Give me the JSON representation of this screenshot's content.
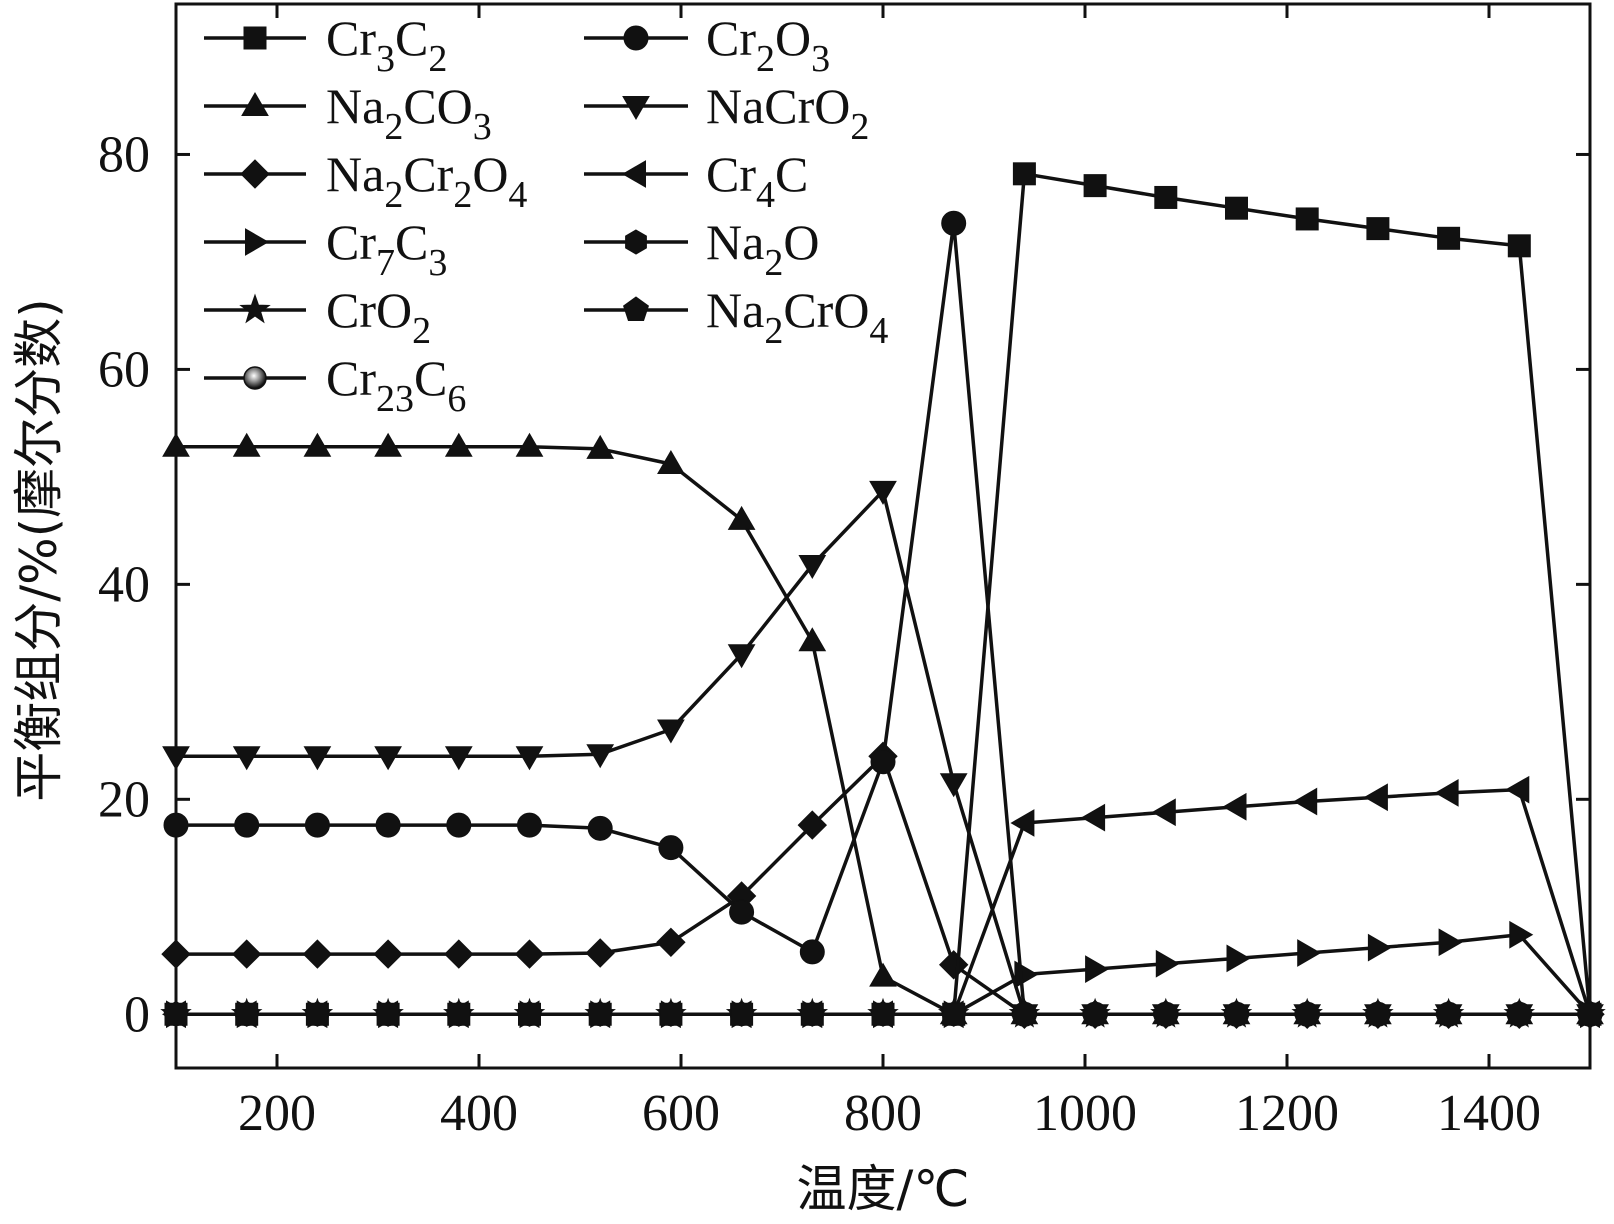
{
  "chart_data": {
    "type": "line",
    "xlabel": "温度/℃",
    "ylabel": "平衡组分/%(摩尔分数)",
    "xlim": [
      100,
      1500
    ],
    "ylim": [
      -5,
      94
    ],
    "xticks": [
      200,
      400,
      600,
      800,
      1000,
      1200,
      1400
    ],
    "yticks": [
      0,
      20,
      40,
      60,
      80
    ],
    "grid": false,
    "legend_position": "top-left",
    "x": [
      100,
      170,
      240,
      310,
      380,
      450,
      520,
      590,
      660,
      730,
      800,
      870,
      940,
      1010,
      1080,
      1150,
      1220,
      1290,
      1360,
      1430,
      1500
    ],
    "series": [
      {
        "name": "Cr3C2",
        "label": [
          {
            "t": "Cr"
          },
          {
            "t": "3",
            "sub": true
          },
          {
            "t": "C"
          },
          {
            "t": "2",
            "sub": true
          }
        ],
        "marker": "square",
        "values": [
          0,
          0,
          0,
          0,
          0,
          0,
          0,
          0,
          0,
          0,
          0,
          0,
          78.2,
          77.1,
          76.0,
          75.0,
          74.0,
          73.1,
          72.2,
          71.5,
          0
        ]
      },
      {
        "name": "Cr2O3",
        "label": [
          {
            "t": "Cr"
          },
          {
            "t": "2",
            "sub": true
          },
          {
            "t": "O"
          },
          {
            "t": "3",
            "sub": true
          }
        ],
        "marker": "circle",
        "values": [
          17.6,
          17.6,
          17.6,
          17.6,
          17.6,
          17.6,
          17.3,
          15.5,
          9.5,
          5.8,
          23.5,
          73.6,
          0,
          0,
          0,
          0,
          0,
          0,
          0,
          0,
          0
        ]
      },
      {
        "name": "Na2CO3",
        "label": [
          {
            "t": "Na"
          },
          {
            "t": "2",
            "sub": true
          },
          {
            "t": "CO"
          },
          {
            "t": "3",
            "sub": true
          }
        ],
        "marker": "triangle-up",
        "values": [
          52.8,
          52.8,
          52.8,
          52.8,
          52.8,
          52.8,
          52.6,
          51.2,
          46.0,
          34.7,
          3.5,
          0,
          0,
          0,
          0,
          0,
          0,
          0,
          0,
          0,
          0
        ]
      },
      {
        "name": "NaCrO2",
        "label": [
          {
            "t": "NaCrO"
          },
          {
            "t": "2",
            "sub": true
          }
        ],
        "marker": "triangle-down",
        "values": [
          24.0,
          24.0,
          24.0,
          24.0,
          24.0,
          24.0,
          24.2,
          26.5,
          33.5,
          41.8,
          48.7,
          21.5,
          0,
          0,
          0,
          0,
          0,
          0,
          0,
          0,
          0
        ]
      },
      {
        "name": "Na2Cr2O4",
        "label": [
          {
            "t": "Na"
          },
          {
            "t": "2",
            "sub": true
          },
          {
            "t": "Cr"
          },
          {
            "t": "2",
            "sub": true
          },
          {
            "t": "O"
          },
          {
            "t": "4",
            "sub": true
          }
        ],
        "marker": "diamond",
        "values": [
          5.6,
          5.6,
          5.6,
          5.6,
          5.6,
          5.6,
          5.7,
          6.7,
          11.0,
          17.6,
          24.0,
          4.6,
          0,
          0,
          0,
          0,
          0,
          0,
          0,
          0,
          0
        ]
      },
      {
        "name": "Cr4C",
        "label": [
          {
            "t": "Cr"
          },
          {
            "t": "4",
            "sub": true
          },
          {
            "t": "C"
          }
        ],
        "marker": "triangle-left",
        "values": [
          0,
          0,
          0,
          0,
          0,
          0,
          0,
          0,
          0,
          0,
          0,
          0,
          17.8,
          18.3,
          18.8,
          19.3,
          19.8,
          20.2,
          20.6,
          20.9,
          0
        ]
      },
      {
        "name": "Cr7C3",
        "label": [
          {
            "t": "Cr"
          },
          {
            "t": "7",
            "sub": true
          },
          {
            "t": "C"
          },
          {
            "t": "3",
            "sub": true
          }
        ],
        "marker": "triangle-right",
        "values": [
          0,
          0,
          0,
          0,
          0,
          0,
          0,
          0,
          0,
          0,
          0,
          0,
          3.7,
          4.2,
          4.7,
          5.2,
          5.7,
          6.2,
          6.7,
          7.4,
          0
        ]
      },
      {
        "name": "Na2O",
        "label": [
          {
            "t": "Na"
          },
          {
            "t": "2",
            "sub": true
          },
          {
            "t": "O"
          }
        ],
        "marker": "hexagon",
        "values": [
          0,
          0,
          0,
          0,
          0,
          0,
          0,
          0,
          0,
          0,
          0,
          0,
          0,
          0,
          0,
          0,
          0,
          0,
          0,
          0,
          0
        ]
      },
      {
        "name": "CrO2",
        "label": [
          {
            "t": "CrO"
          },
          {
            "t": "2",
            "sub": true
          }
        ],
        "marker": "star",
        "values": [
          0,
          0,
          0,
          0,
          0,
          0,
          0,
          0,
          0,
          0,
          0,
          0,
          0,
          0,
          0,
          0,
          0,
          0,
          0,
          0,
          0
        ]
      },
      {
        "name": "Na2CrO4",
        "label": [
          {
            "t": "Na"
          },
          {
            "t": "2",
            "sub": true
          },
          {
            "t": "CrO"
          },
          {
            "t": "4",
            "sub": true
          }
        ],
        "marker": "pentagon",
        "values": [
          0,
          0,
          0,
          0,
          0,
          0,
          0,
          0,
          0,
          0,
          0,
          0,
          0,
          0,
          0,
          0,
          0,
          0,
          0,
          0,
          0
        ]
      },
      {
        "name": "Cr23C6",
        "label": [
          {
            "t": "Cr"
          },
          {
            "t": "23",
            "sub": true
          },
          {
            "t": "C"
          },
          {
            "t": "6",
            "sub": true
          }
        ],
        "marker": "sphere",
        "values": [
          0,
          0,
          0,
          0,
          0,
          0,
          0,
          0,
          0,
          0,
          0,
          0,
          0,
          0,
          0,
          0,
          0,
          0,
          0,
          0,
          0
        ]
      }
    ]
  }
}
